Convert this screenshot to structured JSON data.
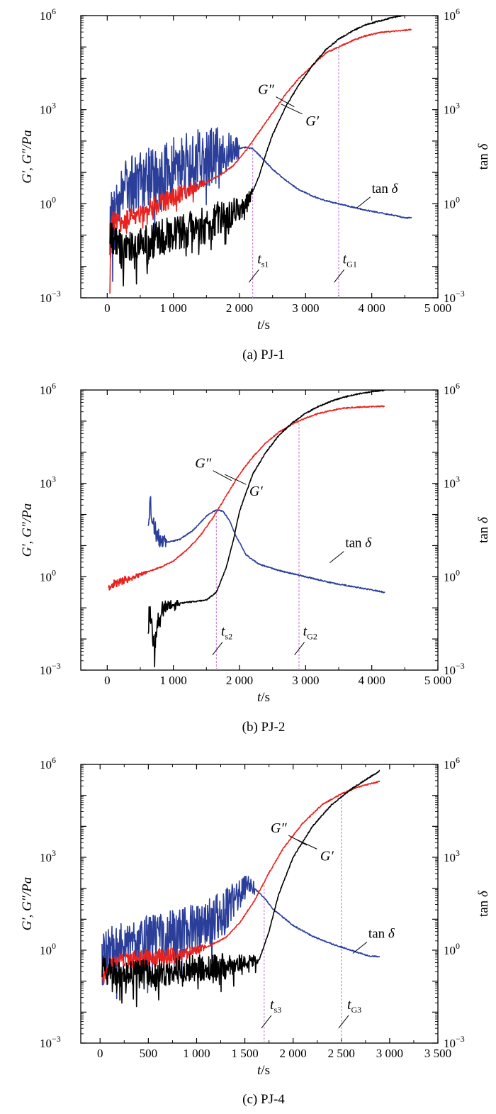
{
  "colors": {
    "g_prime": "#000000",
    "g_double_prime": "#e8221e",
    "tan_delta": "#2b3f9a",
    "marker_line": "#c87fd8",
    "axis": "#000000"
  },
  "chart_data": [
    {
      "type": "line",
      "caption": "(a) PJ-1",
      "xlabel_italic": "t",
      "xlabel_unit": "/s",
      "ylabel_left": "G′, G″/Pa",
      "ylabel_right_text": "tan ",
      "ylabel_right_italic": "δ",
      "yscale": "log",
      "ylim_exp": [
        -3,
        6
      ],
      "xlim": [
        -400,
        5000
      ],
      "xticks": [
        0,
        1000,
        2000,
        3000,
        4000,
        5000
      ],
      "xtick_labels": [
        "0",
        "1 000",
        "2 000",
        "3 000",
        "4 000",
        "5 000"
      ],
      "yticks_exp": [
        -3,
        0,
        3,
        6
      ],
      "ytick_bases": [
        "10",
        "10",
        "10",
        "10"
      ],
      "ytick_exps": [
        "−3",
        "0",
        "3",
        "6"
      ],
      "series": [
        {
          "name": "G′",
          "color": "#000000",
          "noise_seed": 11,
          "noise_amp": 0.6,
          "noise_until": 2200,
          "x": [
            40,
            60,
            200,
            500,
            800,
            1100,
            1400,
            1700,
            1900,
            2100,
            2200,
            2300,
            2400,
            2500,
            2700,
            2900,
            3100,
            3300,
            3500,
            3700,
            3900,
            4100,
            4300,
            4450,
            4600
          ],
          "log_y": [
            -0.9,
            -1.2,
            -1.4,
            -1.3,
            -1.1,
            -0.9,
            -0.7,
            -0.5,
            -0.3,
            0.0,
            0.4,
            0.9,
            1.6,
            2.2,
            3.1,
            3.8,
            4.4,
            4.9,
            5.25,
            5.5,
            5.7,
            5.82,
            5.93,
            6.0,
            6.05
          ]
        },
        {
          "name": "G″",
          "color": "#e8221e",
          "noise_seed": 23,
          "noise_amp": 0.3,
          "noise_until": 1500,
          "x": [
            40,
            60,
            200,
            500,
            800,
            1100,
            1400,
            1700,
            1900,
            2100,
            2300,
            2500,
            2700,
            2900,
            3100,
            3300,
            3500,
            3700,
            3900,
            4100,
            4300,
            4450,
            4600
          ],
          "log_y": [
            -2.6,
            -0.5,
            -0.6,
            -0.3,
            0.0,
            0.3,
            0.6,
            0.9,
            1.2,
            1.7,
            2.3,
            2.9,
            3.5,
            4.0,
            4.4,
            4.8,
            5.0,
            5.2,
            5.35,
            5.45,
            5.5,
            5.52,
            5.55
          ]
        },
        {
          "name": "tan δ",
          "color": "#2b3f9a",
          "noise_seed": 37,
          "noise_amp": 1.0,
          "noise_until": 2000,
          "x": [
            40,
            60,
            200,
            500,
            800,
            1100,
            1400,
            1700,
            1900,
            2100,
            2200,
            2300,
            2500,
            2700,
            2900,
            3100,
            3300,
            3500,
            3700,
            3900,
            4100,
            4300,
            4500,
            4600
          ],
          "log_y": [
            -0.8,
            -0.6,
            0.4,
            0.7,
            1.0,
            1.2,
            1.4,
            1.6,
            1.75,
            1.8,
            1.75,
            1.55,
            1.1,
            0.75,
            0.45,
            0.25,
            0.1,
            0.0,
            -0.1,
            -0.2,
            -0.28,
            -0.35,
            -0.45,
            -0.45
          ]
        }
      ],
      "annotations": {
        "g2_label": "G″",
        "g1_label": "G′",
        "tan_label": "tan ",
        "tan_label_italic": "δ",
        "ts_main": "t",
        "ts_sub": "s1",
        "tg_main": "t",
        "tg_sub": "G1"
      },
      "ts_x": 2200,
      "tg_x": 3500,
      "anno_pos": {
        "g2": [
          2400,
          3.5
        ],
        "g1": [
          3100,
          2.5
        ],
        "tan": [
          4000,
          0.35
        ],
        "ts_label": [
          2270,
          -1.9
        ],
        "tg_label": [
          3560,
          -1.9
        ]
      }
    },
    {
      "type": "line",
      "caption": "(b) PJ-2",
      "xlabel_italic": "t",
      "xlabel_unit": "/s",
      "ylabel_left": "G′, G″/Pa",
      "ylabel_right_text": "tan ",
      "ylabel_right_italic": "δ",
      "yscale": "log",
      "ylim_exp": [
        -3,
        6
      ],
      "xlim": [
        -400,
        5000
      ],
      "xticks": [
        0,
        1000,
        2000,
        3000,
        4000,
        5000
      ],
      "xtick_labels": [
        "0",
        "1 000",
        "2 000",
        "3 000",
        "4 000",
        "5 000"
      ],
      "yticks_exp": [
        -3,
        0,
        3,
        6
      ],
      "ytick_bases": [
        "10",
        "10",
        "10",
        "10"
      ],
      "ytick_exps": [
        "−3",
        "0",
        "3",
        "6"
      ],
      "series": [
        {
          "name": "G′",
          "color": "#000000",
          "noise_seed": 5,
          "noise_amp": 0.35,
          "noise_until": 1100,
          "x": [
            620,
            650,
            700,
            800,
            900,
            1100,
            1300,
            1500,
            1650,
            1800,
            1900,
            2000,
            2200,
            2400,
            2600,
            2800,
            3000,
            3200,
            3400,
            3600,
            3800,
            4000,
            4200
          ],
          "log_y": [
            -1.5,
            -1.0,
            -2.3,
            -1.1,
            -0.9,
            -0.85,
            -0.8,
            -0.75,
            -0.5,
            0.3,
            1.1,
            2.1,
            3.3,
            4.0,
            4.55,
            4.95,
            5.25,
            5.48,
            5.65,
            5.78,
            5.88,
            5.95,
            6.0
          ]
        },
        {
          "name": "G″",
          "color": "#e8221e",
          "noise_seed": 9,
          "noise_amp": 0.15,
          "noise_until": 600,
          "x": [
            20,
            200,
            400,
            600,
            800,
            1000,
            1200,
            1400,
            1600,
            1800,
            2000,
            2200,
            2400,
            2600,
            2800,
            3000,
            3200,
            3400,
            3600,
            3800,
            4000,
            4200
          ],
          "log_y": [
            -0.3,
            -0.15,
            0.0,
            0.15,
            0.3,
            0.5,
            0.85,
            1.3,
            1.9,
            2.6,
            3.3,
            3.85,
            4.3,
            4.65,
            4.9,
            5.1,
            5.25,
            5.35,
            5.42,
            5.45,
            5.47,
            5.48
          ]
        },
        {
          "name": "tan δ",
          "color": "#2b3f9a",
          "noise_seed": 21,
          "noise_amp": 0.55,
          "noise_until": 900,
          "x": [
            620,
            650,
            700,
            800,
            900,
            1100,
            1300,
            1500,
            1650,
            1750,
            1850,
            1950,
            2100,
            2300,
            2600,
            3000,
            3400,
            3800,
            4200
          ],
          "log_y": [
            1.9,
            2.3,
            1.6,
            1.2,
            1.1,
            1.2,
            1.5,
            1.95,
            2.15,
            2.1,
            1.8,
            1.3,
            0.7,
            0.4,
            0.2,
            0.0,
            -0.2,
            -0.35,
            -0.5
          ]
        }
      ],
      "annotations": {
        "g2_label": "G″",
        "g1_label": "G′",
        "tan_label": "tan ",
        "tan_label_italic": "δ",
        "ts_main": "t",
        "ts_sub": "s2",
        "tg_main": "t",
        "tg_sub": "G2"
      },
      "ts_x": 1650,
      "tg_x": 2900,
      "anno_pos": {
        "g2": [
          1450,
          3.5
        ],
        "g1": [
          2250,
          2.6
        ],
        "tan": [
          3600,
          0.95
        ],
        "ts_label": [
          1720,
          -1.9
        ],
        "tg_label": [
          2960,
          -1.9
        ]
      }
    },
    {
      "type": "line",
      "caption": "(c) PJ-4",
      "xlabel_italic": "t",
      "xlabel_unit": "/s",
      "ylabel_left": "G′, G″/Pa",
      "ylabel_right_text": "tan ",
      "ylabel_right_italic": "δ",
      "yscale": "log",
      "ylim_exp": [
        -3,
        6
      ],
      "xlim": [
        -200,
        3500
      ],
      "xticks": [
        0,
        500,
        1000,
        1500,
        2000,
        2500,
        3000,
        3500
      ],
      "xtick_labels": [
        "0",
        "500",
        "1 000",
        "1 500",
        "2 000",
        "2 500",
        "3 000",
        "3 500"
      ],
      "yticks_exp": [
        -3,
        0,
        3,
        6
      ],
      "ytick_bases": [
        "10",
        "10",
        "10",
        "10"
      ],
      "ytick_exps": [
        "−3",
        "0",
        "3",
        "6"
      ],
      "series": [
        {
          "name": "G′",
          "color": "#000000",
          "noise_seed": 31,
          "noise_amp": 0.45,
          "noise_until": 1650,
          "x": [
            20,
            100,
            300,
            500,
            700,
            900,
            1100,
            1300,
            1500,
            1650,
            1750,
            1850,
            2000,
            2200,
            2400,
            2600,
            2800,
            2900
          ],
          "log_y": [
            -0.6,
            -0.7,
            -0.8,
            -0.75,
            -0.7,
            -0.6,
            -0.55,
            -0.5,
            -0.4,
            -0.3,
            0.6,
            1.8,
            3.0,
            4.0,
            4.7,
            5.2,
            5.6,
            5.8
          ]
        },
        {
          "name": "G″",
          "color": "#e8221e",
          "noise_seed": 41,
          "noise_amp": 0.3,
          "noise_until": 1100,
          "x": [
            20,
            100,
            300,
            500,
            700,
            900,
            1100,
            1300,
            1450,
            1600,
            1750,
            1900,
            2100,
            2300,
            2500,
            2700,
            2900
          ],
          "log_y": [
            -0.9,
            -0.5,
            -0.3,
            -0.25,
            -0.2,
            -0.1,
            0.1,
            0.4,
            0.9,
            1.6,
            2.5,
            3.3,
            4.1,
            4.7,
            5.05,
            5.3,
            5.45
          ]
        },
        {
          "name": "tan δ",
          "color": "#2b3f9a",
          "noise_seed": 53,
          "noise_amp": 0.85,
          "noise_until": 1600,
          "x": [
            20,
            100,
            300,
            500,
            700,
            900,
            1100,
            1300,
            1450,
            1550,
            1600,
            1700,
            1800,
            2000,
            2200,
            2400,
            2600,
            2800,
            2900
          ],
          "log_y": [
            -0.3,
            0.0,
            0.2,
            0.3,
            0.4,
            0.6,
            0.9,
            1.3,
            1.8,
            2.2,
            2.0,
            1.7,
            1.3,
            0.8,
            0.45,
            0.2,
            0.0,
            -0.2,
            -0.2
          ]
        }
      ],
      "annotations": {
        "g2_label": "G″",
        "g1_label": "G′",
        "tan_label": "tan ",
        "tan_label_italic": "δ",
        "ts_main": "t",
        "ts_sub": "s3",
        "tg_main": "t",
        "tg_sub": "G3"
      },
      "ts_x": 1700,
      "tg_x": 2500,
      "anno_pos": {
        "g2": [
          1850,
          3.8
        ],
        "g1": [
          2350,
          2.9
        ],
        "tan": [
          2780,
          0.4
        ],
        "ts_label": [
          1760,
          -1.9
        ],
        "tg_label": [
          2560,
          -1.9
        ]
      }
    }
  ]
}
